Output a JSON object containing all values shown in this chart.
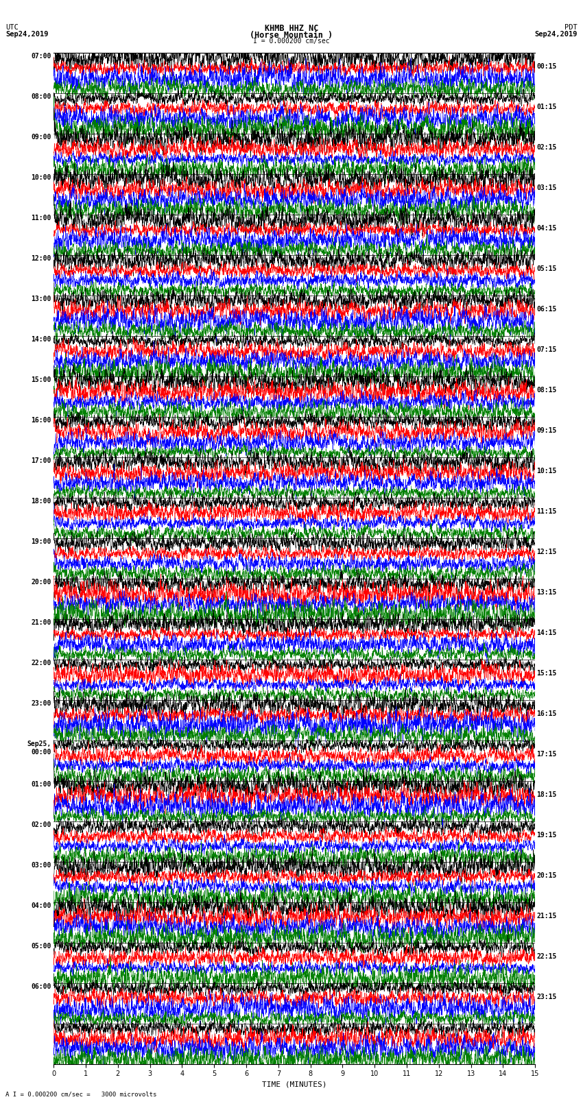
{
  "title_line1": "KHMB HHZ NC",
  "title_line2": "(Horse Mountain )",
  "title_scale": "I = 0.000200 cm/sec",
  "left_header1": "UTC",
  "left_header2": "Sep24,2019",
  "right_header1": "PDT",
  "right_header2": "Sep24,2019",
  "footer": "A I = 0.000200 cm/sec =   3000 microvolts",
  "xlabel": "TIME (MINUTES)",
  "xlim": [
    0,
    15
  ],
  "xticks": [
    0,
    1,
    2,
    3,
    4,
    5,
    6,
    7,
    8,
    9,
    10,
    11,
    12,
    13,
    14,
    15
  ],
  "colors": [
    "black",
    "red",
    "blue",
    "green"
  ],
  "left_times": [
    "07:00",
    "08:00",
    "09:00",
    "10:00",
    "11:00",
    "12:00",
    "13:00",
    "14:00",
    "15:00",
    "16:00",
    "17:00",
    "18:00",
    "19:00",
    "20:00",
    "21:00",
    "22:00",
    "23:00",
    "Sep25,\n00:00",
    "01:00",
    "02:00",
    "03:00",
    "04:00",
    "05:00",
    "06:00"
  ],
  "right_times": [
    "00:15",
    "01:15",
    "02:15",
    "03:15",
    "04:15",
    "05:15",
    "06:15",
    "07:15",
    "08:15",
    "09:15",
    "10:15",
    "11:15",
    "12:15",
    "13:15",
    "14:15",
    "15:15",
    "16:15",
    "17:15",
    "18:15",
    "19:15",
    "20:15",
    "21:15",
    "22:15",
    "23:15"
  ],
  "num_rows": 25,
  "traces_per_row": 4,
  "bg_color": "white",
  "fig_width": 8.5,
  "fig_height": 16.13,
  "dpi": 100
}
